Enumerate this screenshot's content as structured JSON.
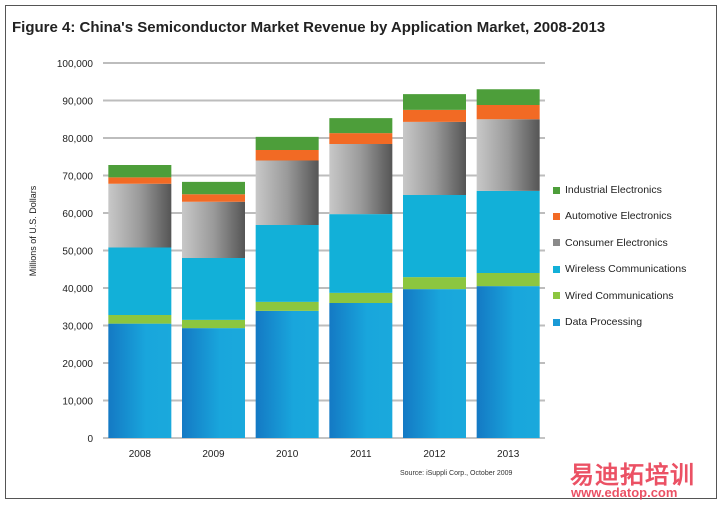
{
  "chart_data": {
    "type": "bar",
    "stacked": true,
    "title": "Figure 4: China's Semiconductor Market Revenue by Application Market, 2008-2013",
    "xlabel": "",
    "ylabel": "Millions of U.S. Dollars",
    "ylim": [
      0,
      100000
    ],
    "yticks": [
      "0",
      "10,000",
      "20,000",
      "30,000",
      "40,000",
      "50,000",
      "60,000",
      "70,000",
      "80,000",
      "90,000",
      "100,000"
    ],
    "grid": true,
    "legend_position": "right",
    "categories": [
      "2008",
      "2009",
      "2010",
      "2011",
      "2012",
      "2013"
    ],
    "series": [
      {
        "name": "Data Processing",
        "color": "#1a9ad6",
        "values": [
          30500,
          29300,
          33900,
          36000,
          39700,
          40500
        ]
      },
      {
        "name": "Wired Communications",
        "color": "#8cc63f",
        "values": [
          2300,
          2200,
          2400,
          2700,
          3200,
          3500
        ]
      },
      {
        "name": "Wireless Communications",
        "color": "#12b0d8",
        "values": [
          18000,
          16500,
          20500,
          21000,
          21900,
          21900
        ]
      },
      {
        "name": "Consumer Electronics",
        "color": "#8a8a8a",
        "values": [
          17000,
          15000,
          17200,
          18700,
          19500,
          19100
        ]
      },
      {
        "name": "Automotive Electronics",
        "color": "#f26a24",
        "values": [
          1700,
          2000,
          2800,
          2900,
          3200,
          3800
        ]
      },
      {
        "name": "Industrial Electronics",
        "color": "#4d9e3a",
        "values": [
          3300,
          3300,
          3500,
          4000,
          4200,
          4200
        ]
      }
    ],
    "source": "Source: iSuppli Corp., October 2009"
  },
  "watermark": {
    "text": "易迪拓培训",
    "url": "www.edatop.com"
  }
}
